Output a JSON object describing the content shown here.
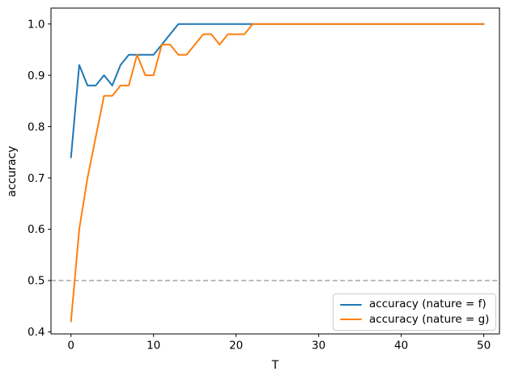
{
  "chart_data": {
    "type": "line",
    "title": "",
    "xlabel": "T",
    "ylabel": "accuracy",
    "grid": false,
    "legend_position": "lower right",
    "xlim": [
      -2.42,
      51.9
    ],
    "ylim": [
      0.396,
      1.031
    ],
    "xticks": [
      {
        "value": 0,
        "label": "0"
      },
      {
        "value": 10,
        "label": "10"
      },
      {
        "value": 20,
        "label": "20"
      },
      {
        "value": 30,
        "label": "30"
      },
      {
        "value": 40,
        "label": "40"
      },
      {
        "value": 50,
        "label": "50"
      }
    ],
    "yticks": [
      {
        "value": 0.4,
        "label": "0.4"
      },
      {
        "value": 0.5,
        "label": "0.5"
      },
      {
        "value": 0.6,
        "label": "0.6"
      },
      {
        "value": 0.7,
        "label": "0.7"
      },
      {
        "value": 0.8,
        "label": "0.8"
      },
      {
        "value": 0.9,
        "label": "0.9"
      },
      {
        "value": 1.0,
        "label": "1.0"
      }
    ],
    "reference_line": {
      "y": 0.5,
      "style": "dashed",
      "color": "#b3b3b3"
    },
    "x": [
      0,
      1,
      2,
      3,
      4,
      5,
      6,
      7,
      8,
      9,
      10,
      11,
      12,
      13,
      14,
      15,
      16,
      17,
      18,
      19,
      20,
      21,
      22,
      23,
      24,
      25,
      26,
      27,
      28,
      29,
      30,
      31,
      32,
      33,
      34,
      35,
      36,
      37,
      38,
      39,
      40,
      41,
      42,
      43,
      44,
      45,
      46,
      47,
      48,
      49,
      50
    ],
    "series": [
      {
        "name": "accuracy (nature = f)",
        "color": "#1f77b4",
        "values": [
          0.74,
          0.92,
          0.88,
          0.88,
          0.9,
          0.88,
          0.92,
          0.94,
          0.94,
          0.94,
          0.94,
          0.96,
          0.98,
          1.0,
          1.0,
          1.0,
          1.0,
          1.0,
          1.0,
          1.0,
          1.0,
          1.0,
          1.0,
          1.0,
          1.0,
          1.0,
          1.0,
          1.0,
          1.0,
          1.0,
          1.0,
          1.0,
          1.0,
          1.0,
          1.0,
          1.0,
          1.0,
          1.0,
          1.0,
          1.0,
          1.0,
          1.0,
          1.0,
          1.0,
          1.0,
          1.0,
          1.0,
          1.0,
          1.0,
          1.0,
          1.0
        ]
      },
      {
        "name": "accuracy (nature = g)",
        "color": "#ff7f0e",
        "values": [
          0.42,
          0.6,
          0.7,
          0.78,
          0.86,
          0.86,
          0.88,
          0.88,
          0.94,
          0.9,
          0.9,
          0.96,
          0.96,
          0.94,
          0.94,
          0.96,
          0.98,
          0.98,
          0.96,
          0.98,
          0.98,
          0.98,
          1.0,
          1.0,
          1.0,
          1.0,
          1.0,
          1.0,
          1.0,
          1.0,
          1.0,
          1.0,
          1.0,
          1.0,
          1.0,
          1.0,
          1.0,
          1.0,
          1.0,
          1.0,
          1.0,
          1.0,
          1.0,
          1.0,
          1.0,
          1.0,
          1.0,
          1.0,
          1.0,
          1.0,
          1.0
        ]
      }
    ]
  }
}
